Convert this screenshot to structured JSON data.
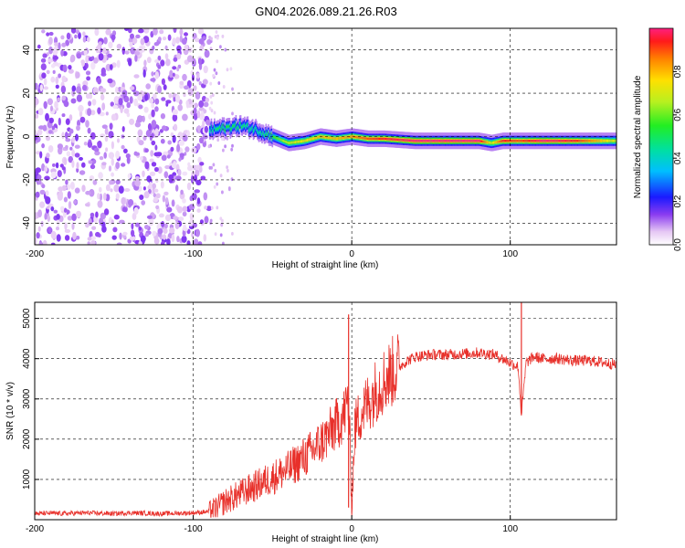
{
  "title": "GN04.2026.089.21.26.R03",
  "chart_data": [
    {
      "type": "heatmap",
      "name": "spectrogram",
      "xlabel": "Height of straight line (km)",
      "ylabel": "Frequency (Hz)",
      "xlim": [
        -200,
        167
      ],
      "ylim": [
        -50,
        50
      ],
      "xticks": [
        -200,
        -100,
        0,
        100
      ],
      "yticks": [
        -40,
        -20,
        0,
        20,
        40
      ],
      "grid": "dashed",
      "colorbar": {
        "label": "Normalized spectral amplitude",
        "range": [
          0,
          1
        ],
        "ticks": [
          0.0,
          0.2,
          0.4,
          0.6,
          0.8
        ],
        "tick_labels": [
          "0.0",
          "0.2",
          "0.4",
          "0.6",
          "0.8"
        ]
      },
      "noise_region": {
        "x_range": [
          -200,
          -90
        ],
        "amplitude": [
          0.0,
          0.15
        ]
      },
      "signal_ridge": {
        "x": [
          -90,
          -80,
          -70,
          -60,
          -50,
          -40,
          -30,
          -20,
          -10,
          0,
          10,
          20,
          40,
          60,
          80,
          88,
          95,
          105,
          120,
          140,
          167
        ],
        "frequency": [
          3,
          4,
          5,
          3,
          0,
          -3,
          -2,
          0,
          -1,
          0,
          -1,
          -1,
          -2,
          -2,
          -2,
          -3,
          -2,
          -2,
          -2,
          -2,
          -2
        ],
        "amplitude": [
          0.45,
          0.55,
          0.5,
          0.45,
          0.55,
          0.7,
          0.75,
          0.8,
          0.8,
          0.85,
          0.9,
          0.95,
          1.0,
          1.0,
          1.0,
          0.7,
          0.95,
          0.9,
          1.0,
          0.95,
          0.7
        ]
      }
    },
    {
      "type": "line",
      "name": "snr",
      "xlabel": "Height of straight line (km)",
      "ylabel": "SNR (10 * v/v)",
      "xlim": [
        -200,
        167
      ],
      "ylim": [
        0,
        5400
      ],
      "xticks": [
        -200,
        -100,
        0,
        100
      ],
      "yticks": [
        1000,
        2000,
        3000,
        4000,
        5000
      ],
      "grid": "dashed",
      "color": "#e8302a",
      "series": [
        {
          "name": "SNR",
          "x": [
            -200,
            -190,
            -180,
            -170,
            -160,
            -150,
            -140,
            -130,
            -120,
            -110,
            -100,
            -90,
            -85,
            -80,
            -75,
            -70,
            -65,
            -60,
            -55,
            -50,
            -45,
            -40,
            -35,
            -30,
            -25,
            -20,
            -15,
            -10,
            -5,
            -2,
            0,
            2,
            5,
            10,
            15,
            20,
            25,
            30,
            35,
            40,
            50,
            60,
            70,
            80,
            90,
            95,
            100,
            105,
            107,
            110,
            115,
            120,
            130,
            140,
            150,
            160,
            167
          ],
          "y": [
            150,
            160,
            150,
            170,
            160,
            150,
            170,
            160,
            150,
            160,
            170,
            200,
            300,
            450,
            550,
            650,
            750,
            850,
            950,
            1050,
            1150,
            1250,
            1400,
            1550,
            1700,
            1900,
            2100,
            2350,
            2600,
            3000,
            300,
            2300,
            2600,
            2900,
            3200,
            3450,
            3650,
            3800,
            3950,
            4050,
            4100,
            4100,
            4120,
            4150,
            4100,
            4000,
            3900,
            3800,
            2600,
            3900,
            4050,
            4000,
            4000,
            3950,
            3950,
            3900,
            3850
          ]
        }
      ],
      "spikes": [
        {
          "x": -2,
          "y_min": 300,
          "y_max": 5100
        },
        {
          "x": 107,
          "y_min": 2650,
          "y_max": 5400
        }
      ]
    }
  ]
}
